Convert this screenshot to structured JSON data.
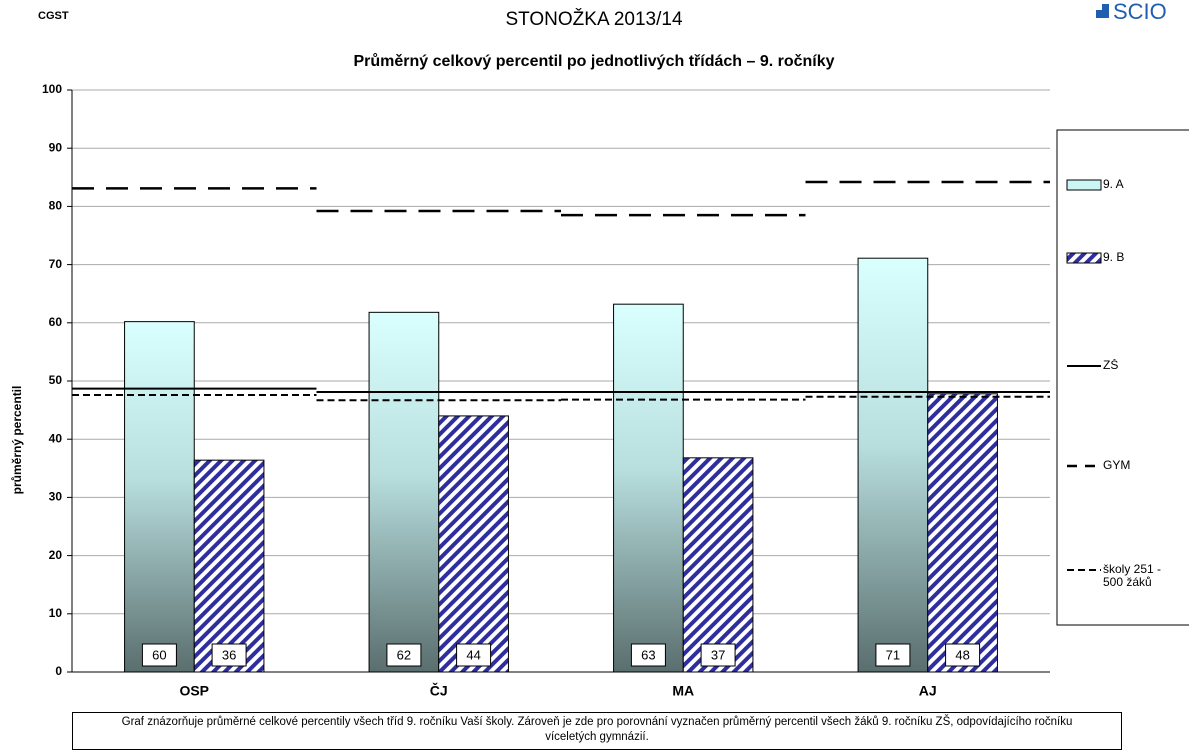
{
  "header": {
    "org": "CGST",
    "logo": "SCIO"
  },
  "chart_data": {
    "type": "bar",
    "title": "STONOŽKA 2013/14",
    "subtitle": "Průměrný celkový percentil po jednotlivých třídách – 9. ročníky",
    "y_label": "průměrný percentil",
    "categories": [
      "OSP",
      "ČJ",
      "MA",
      "AJ"
    ],
    "series": [
      {
        "name": "9. A",
        "type": "bar",
        "color": "#ccf5f5",
        "values": [
          60.2,
          61.8,
          63.2,
          71.1
        ],
        "value_labels": [
          "60",
          "62",
          "63",
          "71"
        ]
      },
      {
        "name": "9. B",
        "type": "bar",
        "pattern": "hatch",
        "color": "#2e2e9e",
        "values": [
          36.4,
          44,
          36.8,
          47.8
        ],
        "value_labels": [
          "36",
          "44",
          "37",
          "48"
        ]
      },
      {
        "name": "ZŠ",
        "type": "line",
        "dash": "solid",
        "color": "#000000",
        "values": [
          48.7,
          48.1,
          48.1,
          48.1
        ]
      },
      {
        "name": "GYM",
        "type": "line",
        "dash": "dashed",
        "color": "#000000",
        "values": [
          83.1,
          79.2,
          78.5,
          84.2
        ]
      },
      {
        "name": "školy 251 - 500 žáků",
        "type": "line",
        "dash": "dotted",
        "color": "#000000",
        "values": [
          47.6,
          46.7,
          46.8,
          47.3
        ]
      }
    ],
    "ylim": [
      0,
      100
    ],
    "yticks": [
      0,
      10,
      20,
      30,
      40,
      50,
      60,
      70,
      80,
      90,
      100
    ],
    "grid": true,
    "legend": "right"
  },
  "note": "Graf znázorňuje průměrné celkové percentily všech tříd 9. ročníku Vaší školy. Zároveň je zde pro porovnání vyznačen průměrný percentil všech žáků  9. ročníku ZŠ, odpovídajícího ročníku víceletých gymnázií."
}
